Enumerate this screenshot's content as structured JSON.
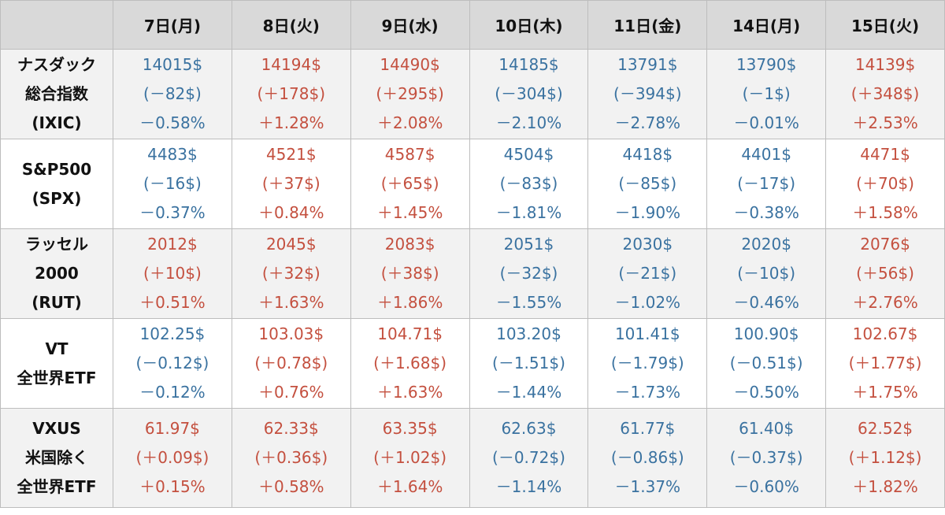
{
  "header": {
    "columns": [
      "7日(月)",
      "8日(火)",
      "9日(水)",
      "10日(木)",
      "11日(金)",
      "14日(月)",
      "15日(火)"
    ]
  },
  "colors": {
    "up": "#c4503f",
    "down": "#3a72a0"
  },
  "table": {
    "rows": [
      {
        "label": [
          "ナスダック",
          "総合指数",
          "(IXIC)"
        ],
        "cells": [
          {
            "lines": [
              "14015$",
              "(－82$)",
              "－0.58%"
            ],
            "trend": "down"
          },
          {
            "lines": [
              "14194$",
              "(＋178$)",
              "＋1.28%"
            ],
            "trend": "up"
          },
          {
            "lines": [
              "14490$",
              "(＋295$)",
              "＋2.08%"
            ],
            "trend": "up"
          },
          {
            "lines": [
              "14185$",
              "(－304$)",
              "－2.10%"
            ],
            "trend": "down"
          },
          {
            "lines": [
              "13791$",
              "(－394$)",
              "－2.78%"
            ],
            "trend": "down"
          },
          {
            "lines": [
              "13790$",
              "(－1$)",
              "－0.01%"
            ],
            "trend": "down"
          },
          {
            "lines": [
              "14139$",
              "(＋348$)",
              "＋2.53%"
            ],
            "trend": "up"
          }
        ]
      },
      {
        "label": [
          "S&P500",
          "(SPX)"
        ],
        "cells": [
          {
            "lines": [
              "4483$",
              "(－16$)",
              "－0.37%"
            ],
            "trend": "down"
          },
          {
            "lines": [
              "4521$",
              "(＋37$)",
              "＋0.84%"
            ],
            "trend": "up"
          },
          {
            "lines": [
              "4587$",
              "(＋65$)",
              "＋1.45%"
            ],
            "trend": "up"
          },
          {
            "lines": [
              "4504$",
              "(－83$)",
              "－1.81%"
            ],
            "trend": "down"
          },
          {
            "lines": [
              "4418$",
              "(－85$)",
              "－1.90%"
            ],
            "trend": "down"
          },
          {
            "lines": [
              "4401$",
              "(－17$)",
              "－0.38%"
            ],
            "trend": "down"
          },
          {
            "lines": [
              "4471$",
              "(＋70$)",
              "＋1.58%"
            ],
            "trend": "up"
          }
        ]
      },
      {
        "label": [
          "ラッセル",
          "2000",
          "(RUT)"
        ],
        "cells": [
          {
            "lines": [
              "2012$",
              "(＋10$)",
              "＋0.51%"
            ],
            "trend": "up"
          },
          {
            "lines": [
              "2045$",
              "(＋32$)",
              "＋1.63%"
            ],
            "trend": "up"
          },
          {
            "lines": [
              "2083$",
              "(＋38$)",
              "＋1.86%"
            ],
            "trend": "up"
          },
          {
            "lines": [
              "2051$",
              "(－32$)",
              "－1.55%"
            ],
            "trend": "down"
          },
          {
            "lines": [
              "2030$",
              "(－21$)",
              "－1.02%"
            ],
            "trend": "down"
          },
          {
            "lines": [
              "2020$",
              "(－10$)",
              "－0.46%"
            ],
            "trend": "down"
          },
          {
            "lines": [
              "2076$",
              "(＋56$)",
              "＋2.76%"
            ],
            "trend": "up"
          }
        ]
      },
      {
        "label": [
          "VT",
          "全世界ETF"
        ],
        "cells": [
          {
            "lines": [
              "102.25$",
              "(－0.12$)",
              "－0.12%"
            ],
            "trend": "down"
          },
          {
            "lines": [
              "103.03$",
              "(＋0.78$)",
              "＋0.76%"
            ],
            "trend": "up"
          },
          {
            "lines": [
              "104.71$",
              "(＋1.68$)",
              "＋1.63%"
            ],
            "trend": "up"
          },
          {
            "lines": [
              "103.20$",
              "(－1.51$)",
              "－1.44%"
            ],
            "trend": "down"
          },
          {
            "lines": [
              "101.41$",
              "(－1.79$)",
              "－1.73%"
            ],
            "trend": "down"
          },
          {
            "lines": [
              "100.90$",
              "(－0.51$)",
              "－0.50%"
            ],
            "trend": "down"
          },
          {
            "lines": [
              "102.67$",
              "(＋1.77$)",
              "＋1.75%"
            ],
            "trend": "up"
          }
        ]
      },
      {
        "label": [
          "VXUS",
          "米国除く",
          "全世界ETF"
        ],
        "cells": [
          {
            "lines": [
              "61.97$",
              "(＋0.09$)",
              "＋0.15%"
            ],
            "trend": "up"
          },
          {
            "lines": [
              "62.33$",
              "(＋0.36$)",
              "＋0.58%"
            ],
            "trend": "up"
          },
          {
            "lines": [
              "63.35$",
              "(＋1.02$)",
              "＋1.64%"
            ],
            "trend": "up"
          },
          {
            "lines": [
              "62.63$",
              "(－0.72$)",
              "－1.14%"
            ],
            "trend": "down"
          },
          {
            "lines": [
              "61.77$",
              "(－0.86$)",
              "－1.37%"
            ],
            "trend": "down"
          },
          {
            "lines": [
              "61.40$",
              "(－0.37$)",
              "－0.60%"
            ],
            "trend": "down"
          },
          {
            "lines": [
              "62.52$",
              "(＋1.12$)",
              "＋1.82%"
            ],
            "trend": "up"
          }
        ]
      }
    ]
  }
}
